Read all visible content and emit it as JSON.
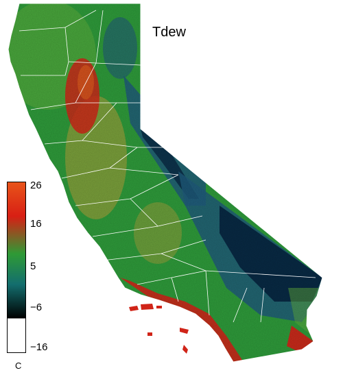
{
  "title": "Tdew",
  "legend": {
    "ticks": [
      "26",
      "16",
      "5",
      "−6",
      "−16"
    ],
    "unit": "C",
    "colors": [
      "#e8541a",
      "#d81f14",
      "#2f9a35",
      "#136e6e",
      "#000000",
      "#ffffff"
    ]
  },
  "palette": {
    "cold": "#06223e",
    "blue": "#1f5a7a",
    "teal": "#187a66",
    "green": "#2e9a3a",
    "lightgreen": "#5fae3c",
    "olive": "#9aa03a",
    "red": "#d02418",
    "orange": "#e2621e",
    "border": "#ffffff"
  }
}
